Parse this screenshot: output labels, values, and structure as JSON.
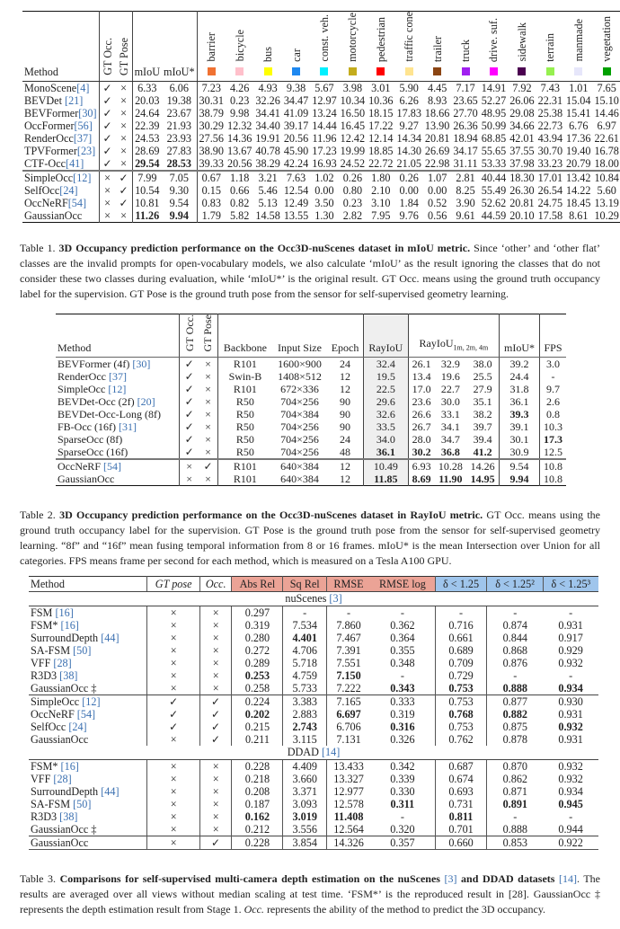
{
  "t1": {
    "headers": {
      "method": "Method",
      "gt_occ": "GT Occ.",
      "gt_pose": "GT Pose",
      "miou": "mIoU",
      "miou_star": "mIoU*"
    },
    "classes": [
      {
        "label": "barrier",
        "color": "#f07232"
      },
      {
        "label": "bicycle",
        "color": "#ffc0cb"
      },
      {
        "label": "bus",
        "color": "#ffff00"
      },
      {
        "label": "car",
        "color": "#1e88f0"
      },
      {
        "label": "const. veh.",
        "color": "#00f0ff"
      },
      {
        "label": "motorcycle",
        "color": "#c4ac1c"
      },
      {
        "label": "pedestrian",
        "color": "#ff0000"
      },
      {
        "label": "traffic cone",
        "color": "#ffe490"
      },
      {
        "label": "trailer",
        "color": "#8b4513"
      },
      {
        "label": "truck",
        "color": "#a020f0"
      },
      {
        "label": "drive. suf.",
        "color": "#ff00ff"
      },
      {
        "label": "sidewalk",
        "color": "#4b0050"
      },
      {
        "label": "terrain",
        "color": "#96f050"
      },
      {
        "label": "manmade",
        "color": "#e6e6fa"
      },
      {
        "label": "vegetation",
        "color": "#00a000"
      }
    ],
    "rows": [
      {
        "name": "MonoScene",
        "ref": "[4]",
        "vals": [
          "✓",
          "×",
          "6.33",
          "6.06",
          "7.23",
          "4.26",
          "4.93",
          "9.38",
          "5.67",
          "3.98",
          "3.01",
          "5.90",
          "4.45",
          "7.17",
          "14.91",
          "7.92",
          "7.43",
          "1.01",
          "7.65"
        ],
        "bold": []
      },
      {
        "name": "BEVDet ",
        "ref": "[21]",
        "vals": [
          "✓",
          "×",
          "20.03",
          "19.38",
          "30.31",
          "0.23",
          "32.26",
          "34.47",
          "12.97",
          "10.34",
          "10.36",
          "6.26",
          "8.93",
          "23.65",
          "52.27",
          "26.06",
          "22.31",
          "15.04",
          "15.10"
        ],
        "bold": []
      },
      {
        "name": "BEVFormer",
        "ref": "[30]",
        "vals": [
          "✓",
          "×",
          "24.64",
          "23.67",
          "38.79",
          "9.98",
          "34.41",
          "41.09",
          "13.24",
          "16.50",
          "18.15",
          "17.83",
          "18.66",
          "27.70",
          "48.95",
          "29.08",
          "25.38",
          "15.41",
          "14.46"
        ],
        "bold": []
      },
      {
        "name": "OccFormer",
        "ref": "[56]",
        "vals": [
          "✓",
          "×",
          "22.39",
          "21.93",
          "30.29",
          "12.32",
          "34.40",
          "39.17",
          "14.44",
          "16.45",
          "17.22",
          "9.27",
          "13.90",
          "26.36",
          "50.99",
          "34.66",
          "22.73",
          "6.76",
          "6.97"
        ],
        "bold": []
      },
      {
        "name": "RenderOcc",
        "ref": "[37]",
        "vals": [
          "✓",
          "×",
          "24.53",
          "23.93",
          "27.56",
          "14.36",
          "19.91",
          "20.56",
          "11.96",
          "12.42",
          "12.14",
          "14.34",
          "20.81",
          "18.94",
          "68.85",
          "42.01",
          "43.94",
          "17.36",
          "22.61"
        ],
        "bold": []
      },
      {
        "name": "TPVFormer",
        "ref": "[23]",
        "vals": [
          "✓",
          "×",
          "28.69",
          "27.83",
          "38.90",
          "13.67",
          "40.78",
          "45.90",
          "17.23",
          "19.99",
          "18.85",
          "14.30",
          "26.69",
          "34.17",
          "55.65",
          "37.55",
          "30.70",
          "19.40",
          "16.78"
        ],
        "bold": []
      },
      {
        "name": "CTF-Occ",
        "ref": "[41]",
        "vals": [
          "✓",
          "×",
          "29.54",
          "28.53",
          "39.33",
          "20.56",
          "38.29",
          "42.24",
          "16.93",
          "24.52",
          "22.72",
          "21.05",
          "22.98",
          "31.11",
          "53.33",
          "37.98",
          "33.23",
          "20.79",
          "18.00"
        ],
        "bold": [
          2,
          3
        ]
      },
      {
        "name": "SimpleOcc",
        "ref": "[12]",
        "vals": [
          "×",
          "✓",
          "7.99",
          "7.05",
          "0.67",
          "1.18",
          "3.21",
          "7.63",
          "1.02",
          "0.26",
          "1.80",
          "0.26",
          "1.07",
          "2.81",
          "40.44",
          "18.30",
          "17.01",
          "13.42",
          "10.84"
        ],
        "bold": [],
        "sep": true
      },
      {
        "name": "SelfOcc",
        "ref": "[24]",
        "vals": [
          "×",
          "✓",
          "10.54",
          "9.30",
          "0.15",
          "0.66",
          "5.46",
          "12.54",
          "0.00",
          "0.80",
          "2.10",
          "0.00",
          "0.00",
          "8.25",
          "55.49",
          "26.30",
          "26.54",
          "14.22",
          "5.60"
        ],
        "bold": []
      },
      {
        "name": "OccNeRF",
        "ref": "[54]",
        "vals": [
          "×",
          "✓",
          "10.81",
          "9.54",
          "0.83",
          "0.82",
          "5.13",
          "12.49",
          "3.50",
          "0.23",
          "3.10",
          "1.84",
          "0.52",
          "3.90",
          "52.62",
          "20.81",
          "24.75",
          "18.45",
          "13.19"
        ],
        "bold": []
      },
      {
        "name": "GaussianOcc",
        "ref": "",
        "vals": [
          "×",
          "×",
          "11.26",
          "9.94",
          "1.79",
          "5.82",
          "14.58",
          "13.55",
          "1.30",
          "2.82",
          "7.95",
          "9.76",
          "0.56",
          "9.61",
          "44.59",
          "20.10",
          "17.58",
          "8.61",
          "10.29"
        ],
        "bold": [
          2,
          3
        ]
      }
    ],
    "caption": {
      "label": "Table 1. ",
      "title": "3D Occupancy prediction performance on the Occ3D-nuScenes dataset in mIoU metric.",
      "text": " Since ‘other’ and ‘other flat’ classes are the invalid prompts for open-vocabulary models, we also calculate ‘mIoU’ as the result ignoring the classes that do not consider these two classes during evaluation, while ‘mIoU*’ is the original result. GT Occ. means using the ground truth occupancy label for the supervision. GT Pose is the ground truth pose from the sensor for self-supervised geometry learning."
    }
  },
  "t2": {
    "headers": [
      "Method",
      "GT Occ.",
      "GT Pose",
      "Backbone",
      "Input Size",
      "Epoch",
      "RayIoU",
      "RayIoU",
      "1m, 2m, 4m",
      "mIoU*",
      "FPS"
    ],
    "rows": [
      {
        "name": "BEVFormer (4f) ",
        "ref": "[30]",
        "vals": [
          "✓",
          "×",
          "R101",
          "1600×900",
          "24",
          "32.4",
          "26.1",
          "32.9",
          "38.0",
          "39.2",
          "3.0"
        ],
        "bold": []
      },
      {
        "name": "RenderOcc ",
        "ref": "[37]",
        "vals": [
          "✓",
          "×",
          "Swin-B",
          "1408×512",
          "12",
          "19.5",
          "13.4",
          "19.6",
          "25.5",
          "24.4",
          "-"
        ],
        "bold": []
      },
      {
        "name": "SimpleOcc ",
        "ref": "[12]",
        "vals": [
          "✓",
          "×",
          "R101",
          "672×336",
          "12",
          "22.5",
          "17.0",
          "22.7",
          "27.9",
          "31.8",
          "9.7"
        ],
        "bold": []
      },
      {
        "name": "BEVDet-Occ (2f) ",
        "ref": "[20]",
        "vals": [
          "✓",
          "×",
          "R50",
          "704×256",
          "90",
          "29.6",
          "23.6",
          "30.0",
          "35.1",
          "36.1",
          "2.6"
        ],
        "bold": []
      },
      {
        "name": "BEVDet-Occ-Long (8f)",
        "ref": "",
        "vals": [
          "✓",
          "×",
          "R50",
          "704×384",
          "90",
          "32.6",
          "26.6",
          "33.1",
          "38.2",
          "39.3",
          "0.8"
        ],
        "bold": [
          9
        ]
      },
      {
        "name": "FB-Occ (16f) ",
        "ref": "[31]",
        "vals": [
          "✓",
          "×",
          "R50",
          "704×256",
          "90",
          "33.5",
          "26.7",
          "34.1",
          "39.7",
          "39.1",
          "10.3"
        ],
        "bold": []
      },
      {
        "name": "SparseOcc (8f)",
        "ref": "",
        "vals": [
          "✓",
          "×",
          "R50",
          "704×256",
          "24",
          "34.0",
          "28.0",
          "34.7",
          "39.4",
          "30.1",
          "17.3"
        ],
        "bold": [
          10
        ]
      },
      {
        "name": "SparseOcc (16f)",
        "ref": "",
        "vals": [
          "✓",
          "×",
          "R50",
          "704×256",
          "48",
          "36.1",
          "30.2",
          "36.8",
          "41.2",
          "30.9",
          "12.5"
        ],
        "bold": [
          5,
          6,
          7,
          8
        ]
      },
      {
        "name": "OccNeRF ",
        "ref": "[54]",
        "vals": [
          "×",
          "✓",
          "R101",
          "640×384",
          "12",
          "10.49",
          "6.93",
          "10.28",
          "14.26",
          "9.54",
          "10.8"
        ],
        "bold": [],
        "sep": true
      },
      {
        "name": "GaussianOcc",
        "ref": "",
        "vals": [
          "×",
          "×",
          "R101",
          "640×384",
          "12",
          "11.85",
          "8.69",
          "11.90",
          "14.95",
          "9.94",
          "10.8"
        ],
        "bold": [
          5,
          6,
          7,
          8,
          9
        ]
      }
    ],
    "caption": {
      "label": "Table 2. ",
      "title": "3D Occupancy prediction performance on the Occ3D-nuScenes dataset in RayIoU metric.",
      "text": " GT Occ. means using the ground truth occupancy label for the supervision. GT Pose is the ground truth pose from the sensor for self-supervised geometry learning. “8f” and “16f” mean fusing temporal information from 8 or 16 frames. mIoU* is the mean Intersection over Union for all categories. FPS means frame per second for each method, which is measured on a Tesla A100 GPU."
    }
  },
  "t3": {
    "headers": [
      "Method",
      "GT pose",
      "Occ.",
      "Abs Rel",
      "Sq Rel",
      "RMSE",
      "RMSE log",
      "δ < 1.25",
      "δ < 1.25²",
      "δ < 1.25³"
    ],
    "sections": [
      {
        "title": "nuScenes ",
        "ref": "[3]",
        "rows": [
          {
            "name": "FSM ",
            "ref": "[16]",
            "vals": [
              "×",
              "×",
              "0.297",
              "-",
              "-",
              "-",
              "-",
              "-",
              "-"
            ],
            "bold": []
          },
          {
            "name": "FSM* ",
            "ref": "[16]",
            "vals": [
              "×",
              "×",
              "0.319",
              "7.534",
              "7.860",
              "0.362",
              "0.716",
              "0.874",
              "0.931"
            ],
            "bold": []
          },
          {
            "name": "SurroundDepth ",
            "ref": "[44]",
            "vals": [
              "×",
              "×",
              "0.280",
              "4.401",
              "7.467",
              "0.364",
              "0.661",
              "0.844",
              "0.917"
            ],
            "bold": [
              3
            ]
          },
          {
            "name": "SA-FSM ",
            "ref": "[50]",
            "vals": [
              "×",
              "×",
              "0.272",
              "4.706",
              "7.391",
              "0.355",
              "0.689",
              "0.868",
              "0.929"
            ],
            "bold": []
          },
          {
            "name": "VFF ",
            "ref": "[28]",
            "vals": [
              "×",
              "×",
              "0.289",
              "5.718",
              "7.551",
              "0.348",
              "0.709",
              "0.876",
              "0.932"
            ],
            "bold": []
          },
          {
            "name": "R3D3 ",
            "ref": "[38]",
            "vals": [
              "×",
              "×",
              "0.253",
              "4.759",
              "7.150",
              "-",
              "0.729",
              "-",
              "-"
            ],
            "bold": [
              2,
              4
            ]
          },
          {
            "name": "GaussianOcc ‡",
            "ref": "",
            "vals": [
              "×",
              "×",
              "0.258",
              "5.733",
              "7.222",
              "0.343",
              "0.753",
              "0.888",
              "0.934"
            ],
            "bold": [
              5,
              6,
              7,
              8
            ]
          },
          {
            "name": "SimpleOcc ",
            "ref": "[12]",
            "vals": [
              "✓",
              "✓",
              "0.224",
              "3.383",
              "7.165",
              "0.333",
              "0.753",
              "0.877",
              "0.930"
            ],
            "bold": [],
            "sep": true
          },
          {
            "name": "OccNeRF ",
            "ref": "[54]",
            "vals": [
              "✓",
              "✓",
              "0.202",
              "2.883",
              "6.697",
              "0.319",
              "0.768",
              "0.882",
              "0.931"
            ],
            "bold": [
              2,
              4,
              6,
              7
            ]
          },
          {
            "name": "SelfOcc ",
            "ref": "[24]",
            "vals": [
              "✓",
              "✓",
              "0.215",
              "2.743",
              "6.706",
              "0.316",
              "0.753",
              "0.875",
              "0.932"
            ],
            "bold": [
              3,
              5,
              8
            ]
          },
          {
            "name": "GaussianOcc",
            "ref": "",
            "vals": [
              "×",
              "✓",
              "0.211",
              "3.115",
              "7.131",
              "0.326",
              "0.762",
              "0.878",
              "0.931"
            ],
            "bold": []
          }
        ]
      },
      {
        "title": "DDAD ",
        "ref": "[14]",
        "rows": [
          {
            "name": "FSM*  ",
            "ref": "[16]",
            "vals": [
              "×",
              "×",
              "0.228",
              "4.409",
              "13.433",
              "0.342",
              "0.687",
              "0.870",
              "0.932"
            ],
            "bold": []
          },
          {
            "name": "VFF ",
            "ref": "[28]",
            "vals": [
              "×",
              "×",
              "0.218",
              "3.660",
              "13.327",
              "0.339",
              "0.674",
              "0.862",
              "0.932"
            ],
            "bold": []
          },
          {
            "name": "SurroundDepth ",
            "ref": "[44]",
            "vals": [
              "×",
              "×",
              "0.208",
              "3.371",
              "12.977",
              "0.330",
              "0.693",
              "0.871",
              "0.934"
            ],
            "bold": []
          },
          {
            "name": "SA-FSM ",
            "ref": "[50]",
            "vals": [
              "×",
              "×",
              "0.187",
              "3.093",
              "12.578",
              "0.311",
              "0.731",
              "0.891",
              "0.945"
            ],
            "bold": [
              5,
              7,
              8
            ]
          },
          {
            "name": "R3D3 ",
            "ref": "[38]",
            "vals": [
              "×",
              "×",
              "0.162",
              "3.019",
              "11.408",
              "-",
              "0.811",
              "-",
              "-"
            ],
            "bold": [
              2,
              3,
              4,
              6
            ]
          },
          {
            "name": "GaussianOcc ‡",
            "ref": "",
            "vals": [
              "×",
              "×",
              "0.212",
              "3.556",
              "12.564",
              "0.320",
              "0.701",
              "0.888",
              "0.944"
            ],
            "bold": []
          },
          {
            "name": "GaussianOcc",
            "ref": "",
            "vals": [
              "×",
              "✓",
              "0.228",
              "3.854",
              "14.326",
              "0.357",
              "0.660",
              "0.853",
              "0.922"
            ],
            "bold": [],
            "sep": true
          }
        ]
      }
    ],
    "caption": {
      "label": "Table 3. ",
      "title": "Comparisons for self-supervised multi-camera depth estimation on the nuScenes ",
      "ref1": "[3]",
      "mid": " and DDAD datasets ",
      "ref2": "[14]",
      "text": ". The results are averaged over all views without median scaling at test time. ‘FSM*’ is the reproduced result in [28]. GaussianOcc ‡ represents the depth estimation result from Stage 1. ",
      "em": "Occ.",
      "text2": " represents the ability of the method to predict the 3D occupancy."
    }
  }
}
